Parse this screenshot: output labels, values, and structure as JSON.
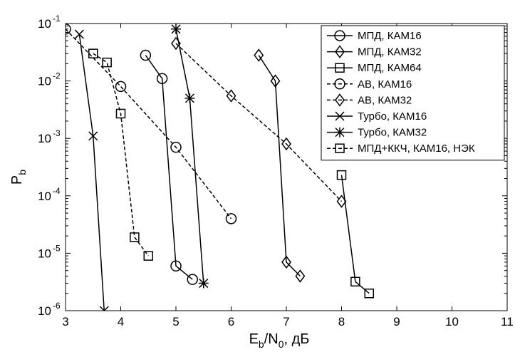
{
  "chart_data": {
    "type": "line",
    "xscale": "linear",
    "yscale": "log",
    "xlim": [
      3,
      11
    ],
    "ylim": [
      1e-06,
      0.1
    ],
    "xticks": [
      "3",
      "4",
      "5",
      "6",
      "7",
      "8",
      "9",
      "10",
      "11"
    ],
    "yticks": [
      {
        "base": "10",
        "exp": "-6"
      },
      {
        "base": "10",
        "exp": "-5"
      },
      {
        "base": "10",
        "exp": "-4"
      },
      {
        "base": "10",
        "exp": "-3"
      },
      {
        "base": "10",
        "exp": "-2"
      },
      {
        "base": "10",
        "exp": "-1"
      }
    ],
    "xlabel": {
      "main": "E",
      "sub1": "b",
      "slash": "/N",
      "sub2": "0",
      "tail": ", дБ"
    },
    "ylabel": {
      "main": "P",
      "sub": "b"
    },
    "grid": false,
    "legend_position": "top-right",
    "series": [
      {
        "name": "МПД, КАМ16",
        "marker": "circle",
        "dash": "solid",
        "x": [
          4.45,
          4.75,
          5.0,
          5.3
        ],
        "y": [
          0.028,
          0.011,
          6e-06,
          3.5e-06
        ]
      },
      {
        "name": "МПД, КАМ32",
        "marker": "diamond",
        "dash": "solid",
        "x": [
          6.5,
          6.8,
          7.0,
          7.25
        ],
        "y": [
          0.028,
          0.01,
          7e-06,
          4e-06
        ]
      },
      {
        "name": "МПД, КАМ64",
        "marker": "square",
        "dash": "solid",
        "x": [
          8.25,
          8.5
        ],
        "y": [
          3.2e-06,
          2e-06
        ]
      },
      {
        "name": "АВ, КАМ16",
        "marker": "circle",
        "dash": "dashed",
        "x": [
          3.0,
          4.0,
          5.0,
          6.0
        ],
        "y": [
          0.08,
          0.008,
          0.0007,
          4e-05
        ]
      },
      {
        "name": "АВ, КАМ32",
        "marker": "diamond",
        "dash": "dashed",
        "x": [
          5.0,
          6.0,
          7.0,
          8.0
        ],
        "y": [
          0.045,
          0.0055,
          0.0008,
          8e-05
        ]
      },
      {
        "name": "Турбо, КАМ16",
        "marker": "x",
        "dash": "solid",
        "x": [
          3.25,
          3.5,
          3.7
        ],
        "y": [
          0.065,
          0.0011,
          1e-06
        ]
      },
      {
        "name": "Турбо, КАМ32",
        "marker": "star",
        "dash": "solid",
        "x": [
          5.0,
          5.25,
          5.5
        ],
        "y": [
          0.08,
          0.005,
          3e-06
        ]
      },
      {
        "name": "МПД+ККЧ, КАМ16, НЭК",
        "marker": "square",
        "dash": "dashed",
        "x": [
          3.5,
          3.75,
          4.0,
          4.25,
          4.5
        ],
        "y": [
          0.03,
          0.021,
          0.0027,
          1.9e-05,
          9e-06
        ]
      }
    ],
    "extra_segments": [
      {
        "marker": "none",
        "dash": "solid",
        "x": [
          8.0,
          8.25
        ],
        "y": [
          0.00023,
          3.2e-06
        ]
      },
      {
        "marker": "square",
        "dash": "none",
        "x": [
          8.0
        ],
        "y": [
          0.00023
        ]
      }
    ]
  }
}
